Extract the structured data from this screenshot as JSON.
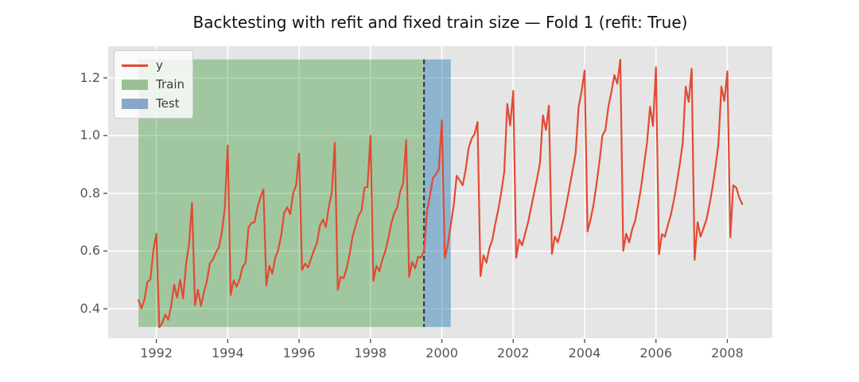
{
  "title": "Backtesting with refit and fixed train size — Fold 1 (refit: True)",
  "legend": {
    "items": [
      {
        "label": "y",
        "type": "line",
        "color": "#e24a33"
      },
      {
        "label": "Train",
        "type": "patch",
        "color": "#9abf94"
      },
      {
        "label": "Test",
        "type": "patch",
        "color": "#87a7c8"
      }
    ]
  },
  "colors": {
    "figure_bg": "#ffffff",
    "plot_bg": "#e5e5e5",
    "grid": "#ffffff",
    "line": "#e24a33",
    "train_fill": "rgba(0,128,0,0.30)",
    "test_fill": "rgba(31,119,180,0.45)",
    "vline": "#3a3a3a",
    "tick": "#555555",
    "tick_label": "#555555",
    "title": "#111111"
  },
  "chart_data": {
    "type": "line",
    "title": "Backtesting with refit and fixed train size — Fold 1 (refit: True)",
    "xlabel": "",
    "ylabel": "",
    "xlim": [
      1990.65,
      2009.26
    ],
    "ylim": [
      0.298,
      1.31
    ],
    "grid": true,
    "legend_position": "upper left",
    "x_ticks": [
      1992,
      1994,
      1996,
      1998,
      2000,
      2002,
      2004,
      2006,
      2008
    ],
    "x_tick_labels": [
      "1992",
      "1994",
      "1996",
      "1998",
      "2000",
      "2002",
      "2004",
      "2006",
      "2008"
    ],
    "y_ticks": [
      0.4,
      0.6,
      0.8,
      1.0,
      1.2
    ],
    "y_tick_labels": [
      "0.4",
      "0.6",
      "0.8",
      "1.0",
      "1.2"
    ],
    "series": [
      {
        "name": "y",
        "color": "#e24a33",
        "freq": "monthly",
        "start": "1991-07",
        "end": "2008-06",
        "values": [
          0.43,
          0.401,
          0.432,
          0.493,
          0.502,
          0.603,
          0.66,
          0.336,
          0.351,
          0.38,
          0.362,
          0.411,
          0.483,
          0.439,
          0.5,
          0.436,
          0.555,
          0.624,
          0.767,
          0.412,
          0.466,
          0.41,
          0.457,
          0.496,
          0.558,
          0.57,
          0.595,
          0.612,
          0.663,
          0.748,
          0.966,
          0.448,
          0.499,
          0.476,
          0.503,
          0.545,
          0.559,
          0.683,
          0.697,
          0.7,
          0.75,
          0.785,
          0.814,
          0.481,
          0.549,
          0.522,
          0.577,
          0.605,
          0.655,
          0.733,
          0.752,
          0.728,
          0.8,
          0.828,
          0.938,
          0.535,
          0.556,
          0.543,
          0.573,
          0.602,
          0.628,
          0.688,
          0.71,
          0.683,
          0.753,
          0.803,
          0.975,
          0.466,
          0.511,
          0.506,
          0.54,
          0.589,
          0.651,
          0.688,
          0.723,
          0.741,
          0.82,
          0.822,
          0.999,
          0.497,
          0.549,
          0.53,
          0.57,
          0.6,
          0.643,
          0.697,
          0.731,
          0.751,
          0.807,
          0.835,
          0.985,
          0.51,
          0.563,
          0.54,
          0.58,
          0.578,
          0.601,
          0.735,
          0.793,
          0.853,
          0.865,
          0.884,
          1.053,
          0.576,
          0.622,
          0.69,
          0.76,
          0.861,
          0.845,
          0.828,
          0.88,
          0.957,
          0.989,
          1.005,
          1.047,
          0.513,
          0.585,
          0.56,
          0.61,
          0.64,
          0.695,
          0.745,
          0.805,
          0.875,
          1.11,
          1.035,
          1.155,
          0.577,
          0.64,
          0.62,
          0.66,
          0.7,
          0.75,
          0.8,
          0.85,
          0.905,
          1.07,
          1.02,
          1.104,
          0.59,
          0.65,
          0.63,
          0.67,
          0.715,
          0.77,
          0.825,
          0.88,
          0.94,
          1.1,
          1.155,
          1.226,
          0.668,
          0.71,
          0.76,
          0.83,
          0.91,
          1.0,
          1.02,
          1.1,
          1.15,
          1.21,
          1.18,
          1.263,
          0.601,
          0.66,
          0.63,
          0.675,
          0.705,
          0.76,
          0.82,
          0.9,
          0.975,
          1.1,
          1.034,
          1.237,
          0.589,
          0.658,
          0.65,
          0.69,
          0.725,
          0.775,
          0.835,
          0.9,
          0.975,
          1.17,
          1.117,
          1.232,
          0.57,
          0.7,
          0.65,
          0.68,
          0.71,
          0.76,
          0.82,
          0.89,
          0.97,
          1.17,
          1.12,
          1.223,
          0.648,
          0.828,
          0.82,
          0.785,
          0.763
        ]
      }
    ],
    "regions": [
      {
        "name": "Train",
        "x0": "1991-07",
        "x1": "1999-07",
        "y0": 0.337,
        "y1": 1.264,
        "fill": "rgba(0,128,0,0.30)"
      },
      {
        "name": "Test",
        "x0": "1999-07",
        "x1": "2000-04",
        "y0": 0.337,
        "y1": 1.264,
        "fill": "rgba(31,119,180,0.45)"
      }
    ],
    "vline": {
      "x": "1999-07",
      "style": "dashed",
      "color": "#3a3a3a"
    }
  }
}
